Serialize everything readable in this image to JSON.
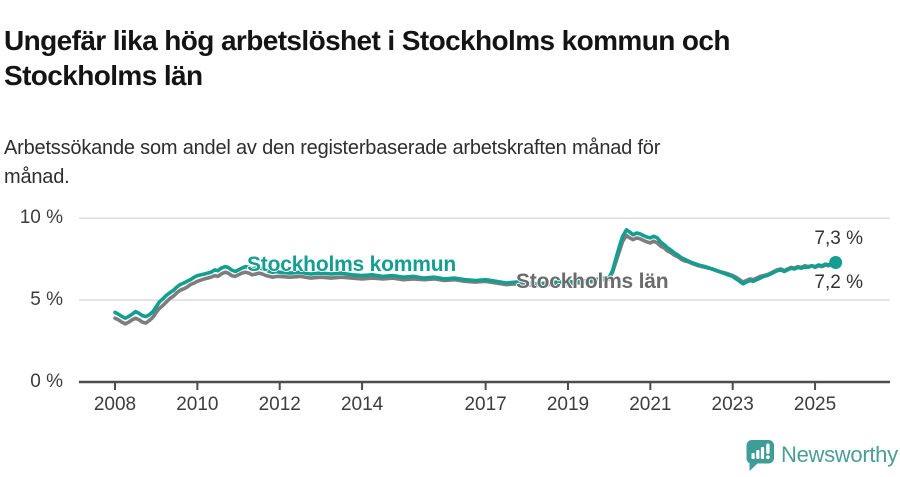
{
  "page": {
    "title": "Ungefär lika hög arbetslöshet i Stockholms kommun och\nStockholms län",
    "subtitle": "Arbetssökande som andel av den registerbaserade arbetskraften månad för\nmånad."
  },
  "colors": {
    "teal": "#149e92",
    "gray": "#7d7d7d",
    "gray_label": "#6b6b6b",
    "grid": "#dcdcdc",
    "axis": "#4d4d4d",
    "tick_text": "#3d3d3d",
    "brand_teal": "#4d9d97"
  },
  "footer": {
    "brand": "Newsworthy"
  },
  "chart_data": {
    "type": "line",
    "title": "Ungefär lika hög arbetslöshet i Stockholms kommun och Stockholms län",
    "subtitle": "Arbetssökande som andel av den registerbaserade arbetskraften månad för månad.",
    "unit": "%",
    "grid": "horizontal",
    "legend_position": "inline-labels",
    "ylim": [
      0,
      10
    ],
    "xlim": [
      2007.1,
      2026.8
    ],
    "y_ticks": [
      {
        "label": "10 %",
        "value": 10
      },
      {
        "label": "5 %",
        "value": 5
      },
      {
        "label": "0 %",
        "value": 0
      }
    ],
    "x_ticks": [
      2008,
      2010,
      2012,
      2014,
      2017,
      2019,
      2021,
      2023,
      2025
    ],
    "series": [
      {
        "name": "Stockholms kommun",
        "color": "#149e92",
        "end_label": "7,3 %",
        "end_value": 7.3,
        "points": [
          [
            2008.0,
            4.25
          ],
          [
            2008.08,
            4.15
          ],
          [
            2008.17,
            4.0
          ],
          [
            2008.25,
            3.9
          ],
          [
            2008.33,
            4.0
          ],
          [
            2008.42,
            4.15
          ],
          [
            2008.5,
            4.3
          ],
          [
            2008.58,
            4.2
          ],
          [
            2008.67,
            4.05
          ],
          [
            2008.75,
            4.0
          ],
          [
            2008.83,
            4.1
          ],
          [
            2008.92,
            4.3
          ],
          [
            2009.0,
            4.6
          ],
          [
            2009.08,
            4.9
          ],
          [
            2009.17,
            5.1
          ],
          [
            2009.25,
            5.3
          ],
          [
            2009.33,
            5.45
          ],
          [
            2009.42,
            5.6
          ],
          [
            2009.5,
            5.8
          ],
          [
            2009.58,
            5.95
          ],
          [
            2009.67,
            6.05
          ],
          [
            2009.75,
            6.15
          ],
          [
            2009.83,
            6.25
          ],
          [
            2009.92,
            6.4
          ],
          [
            2010.0,
            6.5
          ],
          [
            2010.17,
            6.6
          ],
          [
            2010.33,
            6.7
          ],
          [
            2010.42,
            6.85
          ],
          [
            2010.5,
            6.8
          ],
          [
            2010.58,
            6.95
          ],
          [
            2010.67,
            7.05
          ],
          [
            2010.75,
            7.0
          ],
          [
            2010.83,
            6.85
          ],
          [
            2010.92,
            6.75
          ],
          [
            2011.0,
            6.85
          ],
          [
            2011.08,
            6.95
          ],
          [
            2011.17,
            7.05
          ],
          [
            2011.25,
            7.0
          ],
          [
            2011.33,
            6.9
          ],
          [
            2011.42,
            6.95
          ],
          [
            2011.5,
            7.0
          ],
          [
            2011.58,
            6.9
          ],
          [
            2011.67,
            6.85
          ],
          [
            2011.75,
            6.75
          ],
          [
            2011.83,
            6.7
          ],
          [
            2011.92,
            6.75
          ],
          [
            2012.0,
            6.7
          ],
          [
            2012.25,
            6.65
          ],
          [
            2012.5,
            6.7
          ],
          [
            2012.75,
            6.6
          ],
          [
            2013.0,
            6.65
          ],
          [
            2013.25,
            6.6
          ],
          [
            2013.5,
            6.65
          ],
          [
            2013.75,
            6.55
          ],
          [
            2014.0,
            6.5
          ],
          [
            2014.25,
            6.55
          ],
          [
            2014.5,
            6.45
          ],
          [
            2014.75,
            6.5
          ],
          [
            2015.0,
            6.4
          ],
          [
            2015.25,
            6.45
          ],
          [
            2015.5,
            6.35
          ],
          [
            2015.75,
            6.4
          ],
          [
            2016.0,
            6.3
          ],
          [
            2016.25,
            6.35
          ],
          [
            2016.5,
            6.25
          ],
          [
            2016.75,
            6.2
          ],
          [
            2017.0,
            6.25
          ],
          [
            2017.25,
            6.15
          ],
          [
            2017.5,
            6.05
          ],
          [
            2017.75,
            6.1
          ],
          [
            2018.0,
            6.05
          ],
          [
            2018.25,
            6.0
          ],
          [
            2018.5,
            6.05
          ],
          [
            2018.75,
            6.1
          ],
          [
            2019.0,
            6.1
          ],
          [
            2019.25,
            6.15
          ],
          [
            2019.5,
            6.2
          ],
          [
            2019.75,
            6.3
          ],
          [
            2020.0,
            6.4
          ],
          [
            2020.08,
            6.8
          ],
          [
            2020.17,
            7.6
          ],
          [
            2020.25,
            8.3
          ],
          [
            2020.33,
            8.9
          ],
          [
            2020.42,
            9.3
          ],
          [
            2020.5,
            9.15
          ],
          [
            2020.58,
            9.0
          ],
          [
            2020.67,
            9.1
          ],
          [
            2020.75,
            9.05
          ],
          [
            2020.83,
            8.95
          ],
          [
            2020.92,
            8.85
          ],
          [
            2021.0,
            8.8
          ],
          [
            2021.08,
            8.9
          ],
          [
            2021.17,
            8.8
          ],
          [
            2021.25,
            8.55
          ],
          [
            2021.33,
            8.4
          ],
          [
            2021.42,
            8.2
          ],
          [
            2021.5,
            8.05
          ],
          [
            2021.58,
            7.9
          ],
          [
            2021.67,
            7.75
          ],
          [
            2021.75,
            7.6
          ],
          [
            2021.83,
            7.5
          ],
          [
            2021.92,
            7.4
          ],
          [
            2022.0,
            7.3
          ],
          [
            2022.17,
            7.15
          ],
          [
            2022.33,
            7.05
          ],
          [
            2022.5,
            6.9
          ],
          [
            2022.67,
            6.75
          ],
          [
            2022.83,
            6.6
          ],
          [
            2023.0,
            6.45
          ],
          [
            2023.08,
            6.3
          ],
          [
            2023.17,
            6.15
          ],
          [
            2023.25,
            6.0
          ],
          [
            2023.33,
            6.1
          ],
          [
            2023.42,
            6.2
          ],
          [
            2023.5,
            6.15
          ],
          [
            2023.58,
            6.25
          ],
          [
            2023.67,
            6.35
          ],
          [
            2023.75,
            6.45
          ],
          [
            2023.83,
            6.5
          ],
          [
            2023.92,
            6.6
          ],
          [
            2024.0,
            6.7
          ],
          [
            2024.08,
            6.8
          ],
          [
            2024.17,
            6.85
          ],
          [
            2024.25,
            6.75
          ],
          [
            2024.33,
            6.85
          ],
          [
            2024.42,
            6.95
          ],
          [
            2024.5,
            6.9
          ],
          [
            2024.58,
            7.0
          ],
          [
            2024.67,
            6.95
          ],
          [
            2024.75,
            7.05
          ],
          [
            2024.83,
            7.0
          ],
          [
            2024.92,
            7.1
          ],
          [
            2025.0,
            7.05
          ],
          [
            2025.08,
            7.15
          ],
          [
            2025.17,
            7.1
          ],
          [
            2025.25,
            7.2
          ],
          [
            2025.33,
            7.15
          ],
          [
            2025.42,
            7.25
          ],
          [
            2025.5,
            7.3
          ]
        ]
      },
      {
        "name": "Stockholms län",
        "color": "#7d7d7d",
        "end_label": "7,2 %",
        "end_value": 7.2,
        "points": [
          [
            2008.0,
            3.9
          ],
          [
            2008.08,
            3.8
          ],
          [
            2008.17,
            3.65
          ],
          [
            2008.25,
            3.55
          ],
          [
            2008.33,
            3.65
          ],
          [
            2008.42,
            3.8
          ],
          [
            2008.5,
            3.9
          ],
          [
            2008.58,
            3.8
          ],
          [
            2008.67,
            3.65
          ],
          [
            2008.75,
            3.6
          ],
          [
            2008.83,
            3.75
          ],
          [
            2008.92,
            3.95
          ],
          [
            2009.0,
            4.25
          ],
          [
            2009.08,
            4.5
          ],
          [
            2009.17,
            4.7
          ],
          [
            2009.25,
            4.9
          ],
          [
            2009.33,
            5.1
          ],
          [
            2009.42,
            5.25
          ],
          [
            2009.5,
            5.45
          ],
          [
            2009.58,
            5.6
          ],
          [
            2009.67,
            5.7
          ],
          [
            2009.75,
            5.8
          ],
          [
            2009.83,
            5.95
          ],
          [
            2009.92,
            6.05
          ],
          [
            2010.0,
            6.15
          ],
          [
            2010.17,
            6.3
          ],
          [
            2010.33,
            6.4
          ],
          [
            2010.42,
            6.5
          ],
          [
            2010.5,
            6.45
          ],
          [
            2010.58,
            6.6
          ],
          [
            2010.67,
            6.7
          ],
          [
            2010.75,
            6.65
          ],
          [
            2010.83,
            6.5
          ],
          [
            2010.92,
            6.45
          ],
          [
            2011.0,
            6.55
          ],
          [
            2011.08,
            6.65
          ],
          [
            2011.17,
            6.7
          ],
          [
            2011.25,
            6.65
          ],
          [
            2011.33,
            6.55
          ],
          [
            2011.42,
            6.6
          ],
          [
            2011.5,
            6.65
          ],
          [
            2011.58,
            6.6
          ],
          [
            2011.67,
            6.5
          ],
          [
            2011.75,
            6.45
          ],
          [
            2011.83,
            6.4
          ],
          [
            2011.92,
            6.45
          ],
          [
            2012.0,
            6.45
          ],
          [
            2012.25,
            6.4
          ],
          [
            2012.5,
            6.45
          ],
          [
            2012.75,
            6.35
          ],
          [
            2013.0,
            6.4
          ],
          [
            2013.25,
            6.35
          ],
          [
            2013.5,
            6.4
          ],
          [
            2013.75,
            6.35
          ],
          [
            2014.0,
            6.3
          ],
          [
            2014.25,
            6.35
          ],
          [
            2014.5,
            6.3
          ],
          [
            2014.75,
            6.35
          ],
          [
            2015.0,
            6.25
          ],
          [
            2015.25,
            6.3
          ],
          [
            2015.5,
            6.25
          ],
          [
            2015.75,
            6.3
          ],
          [
            2016.0,
            6.2
          ],
          [
            2016.25,
            6.25
          ],
          [
            2016.5,
            6.15
          ],
          [
            2016.75,
            6.1
          ],
          [
            2017.0,
            6.15
          ],
          [
            2017.25,
            6.05
          ],
          [
            2017.5,
            5.95
          ],
          [
            2017.75,
            6.0
          ],
          [
            2018.0,
            5.95
          ],
          [
            2018.25,
            5.9
          ],
          [
            2018.5,
            5.95
          ],
          [
            2018.75,
            6.0
          ],
          [
            2019.0,
            6.0
          ],
          [
            2019.25,
            6.05
          ],
          [
            2019.5,
            6.1
          ],
          [
            2019.75,
            6.2
          ],
          [
            2020.0,
            6.3
          ],
          [
            2020.08,
            6.7
          ],
          [
            2020.17,
            7.4
          ],
          [
            2020.25,
            8.0
          ],
          [
            2020.33,
            8.6
          ],
          [
            2020.42,
            8.95
          ],
          [
            2020.5,
            8.8
          ],
          [
            2020.58,
            8.7
          ],
          [
            2020.67,
            8.8
          ],
          [
            2020.75,
            8.75
          ],
          [
            2020.83,
            8.65
          ],
          [
            2020.92,
            8.55
          ],
          [
            2021.0,
            8.5
          ],
          [
            2021.08,
            8.6
          ],
          [
            2021.17,
            8.5
          ],
          [
            2021.25,
            8.3
          ],
          [
            2021.33,
            8.2
          ],
          [
            2021.42,
            8.0
          ],
          [
            2021.5,
            7.9
          ],
          [
            2021.58,
            7.75
          ],
          [
            2021.67,
            7.65
          ],
          [
            2021.75,
            7.5
          ],
          [
            2021.83,
            7.4
          ],
          [
            2021.92,
            7.35
          ],
          [
            2022.0,
            7.25
          ],
          [
            2022.17,
            7.1
          ],
          [
            2022.33,
            7.0
          ],
          [
            2022.5,
            6.9
          ],
          [
            2022.67,
            6.75
          ],
          [
            2022.83,
            6.65
          ],
          [
            2023.0,
            6.5
          ],
          [
            2023.08,
            6.4
          ],
          [
            2023.17,
            6.25
          ],
          [
            2023.25,
            6.1
          ],
          [
            2023.33,
            6.2
          ],
          [
            2023.42,
            6.3
          ],
          [
            2023.5,
            6.25
          ],
          [
            2023.58,
            6.35
          ],
          [
            2023.67,
            6.45
          ],
          [
            2023.75,
            6.5
          ],
          [
            2023.83,
            6.55
          ],
          [
            2023.92,
            6.65
          ],
          [
            2024.0,
            6.75
          ],
          [
            2024.08,
            6.85
          ],
          [
            2024.17,
            6.9
          ],
          [
            2024.25,
            6.8
          ],
          [
            2024.33,
            6.9
          ],
          [
            2024.42,
            7.0
          ],
          [
            2024.5,
            6.95
          ],
          [
            2024.58,
            7.05
          ],
          [
            2024.67,
            7.0
          ],
          [
            2024.75,
            7.1
          ],
          [
            2024.83,
            7.05
          ],
          [
            2024.92,
            7.1
          ],
          [
            2025.0,
            7.0
          ],
          [
            2025.08,
            7.1
          ],
          [
            2025.17,
            7.05
          ],
          [
            2025.25,
            7.15
          ],
          [
            2025.33,
            7.1
          ],
          [
            2025.42,
            7.2
          ],
          [
            2025.5,
            7.2
          ]
        ]
      }
    ]
  }
}
